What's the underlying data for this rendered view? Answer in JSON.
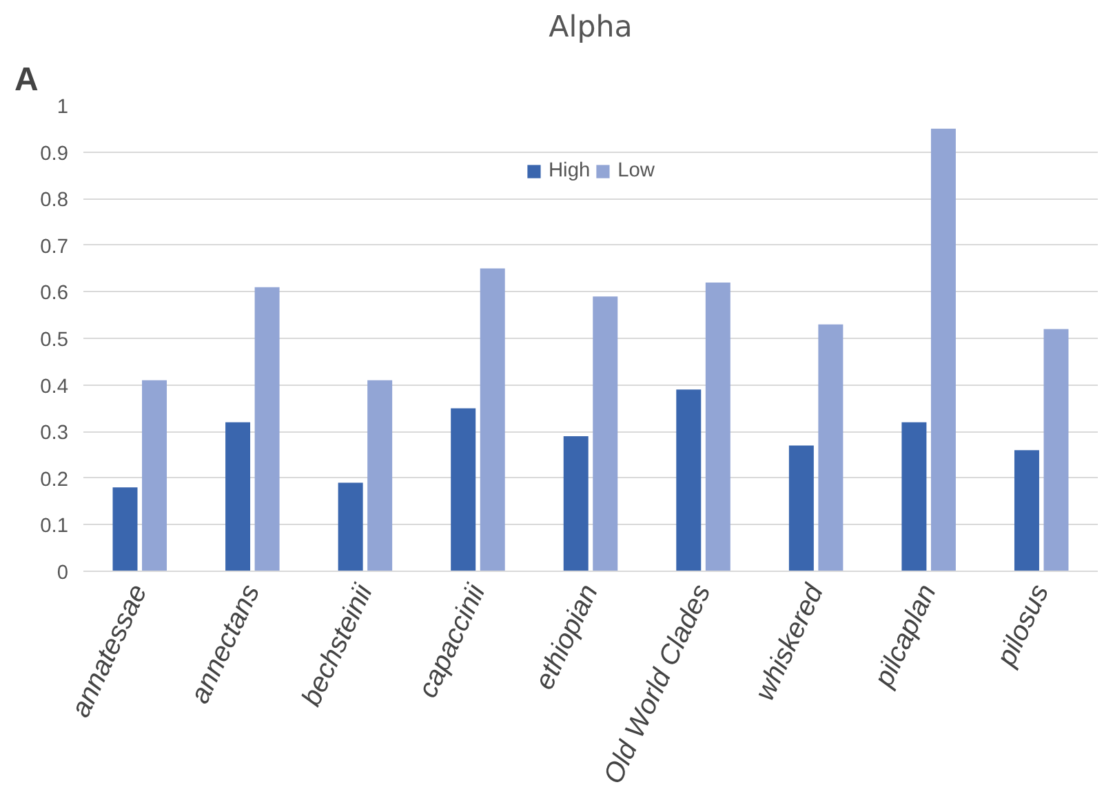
{
  "chart_data": {
    "type": "bar",
    "title": "Alpha",
    "annotations": [
      "A"
    ],
    "categories": [
      "annatessae",
      "annectans",
      "bechsteinii",
      "capaccinii",
      "ethiopian",
      "Old World Clades",
      "whiskered",
      "pilcaplan",
      "pilosus"
    ],
    "series": [
      {
        "name": "High",
        "color": "#3a66ae",
        "values": [
          0.18,
          0.32,
          0.19,
          0.35,
          0.29,
          0.39,
          0.27,
          0.32,
          0.26
        ]
      },
      {
        "name": "Low",
        "color": "#92a5d5",
        "values": [
          0.41,
          0.61,
          0.41,
          0.65,
          0.59,
          0.62,
          0.53,
          0.95,
          0.52
        ]
      }
    ],
    "ylim": [
      0,
      1
    ],
    "yticks": [
      0,
      0.1,
      0.2,
      0.3,
      0.4,
      0.5,
      0.6,
      0.7,
      0.8,
      0.9,
      1
    ],
    "grid": "y",
    "legend": "top"
  }
}
